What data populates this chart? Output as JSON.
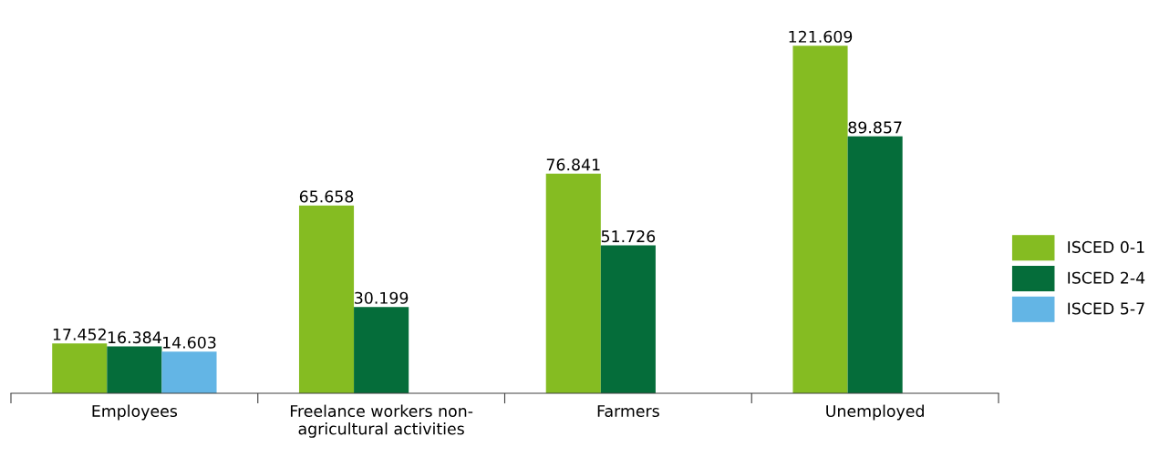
{
  "chart_data": {
    "type": "bar",
    "categories": [
      "Employees",
      "Freelance workers non-\nagricultural activities",
      "Farmers",
      "Unemployed"
    ],
    "series": [
      {
        "name": "ISCED 0-1",
        "color": "#85bc22",
        "values": [
          17.452,
          65.658,
          76.841,
          121.609
        ]
      },
      {
        "name": "ISCED 2-4",
        "color": "#056d3a",
        "values": [
          16.384,
          30.199,
          51.726,
          89.857
        ]
      },
      {
        "name": "ISCED 5-7",
        "color": "#63b5e5",
        "values": [
          14.603,
          null,
          null,
          null
        ]
      }
    ],
    "data_labels": true,
    "legend": "right",
    "grid": false
  }
}
